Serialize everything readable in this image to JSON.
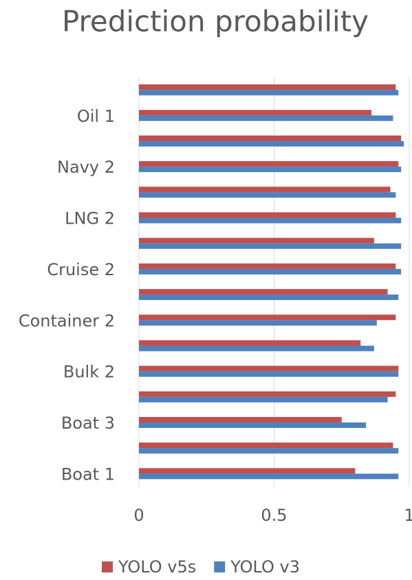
{
  "chart_data": {
    "type": "hbar",
    "title": "Prediction probability",
    "categories": [
      "Boat 1",
      null,
      "Boat 3",
      null,
      "Bulk 2",
      null,
      "Container 2",
      null,
      "Cruise 2",
      null,
      "LNG 2",
      null,
      "Navy 2",
      null,
      "Oil 1",
      null
    ],
    "series": [
      {
        "name": "YOLO v5s",
        "color": "#c0504d",
        "values": [
          0.8,
          0.94,
          0.75,
          0.95,
          0.96,
          0.82,
          0.95,
          0.92,
          0.95,
          0.87,
          0.95,
          0.93,
          0.96,
          0.97,
          0.86,
          0.95
        ]
      },
      {
        "name": "YOLO v3",
        "color": "#4f81bd",
        "values": [
          0.96,
          0.96,
          0.84,
          0.92,
          0.96,
          0.87,
          0.88,
          0.96,
          0.97,
          0.97,
          0.97,
          0.95,
          0.97,
          0.98,
          0.94,
          0.96
        ]
      }
    ],
    "xlim": [
      0,
      1
    ],
    "xticks": [
      0,
      0.5,
      1
    ],
    "grid": true,
    "legend": "bottom"
  }
}
